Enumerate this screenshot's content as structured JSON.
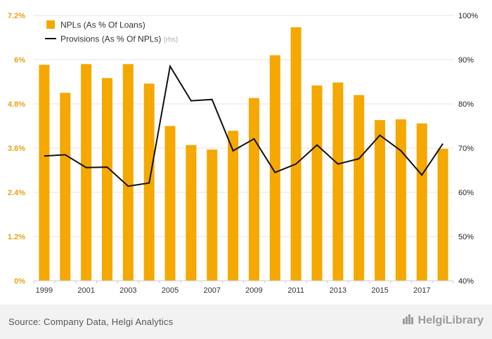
{
  "chart_data": {
    "type": "bar+line",
    "x": [
      "1999",
      "2000",
      "2001",
      "2002",
      "2003",
      "2004",
      "2005",
      "2006",
      "2007",
      "2008",
      "2009",
      "2010",
      "2011",
      "2012",
      "2013",
      "2014",
      "2015",
      "2016",
      "2017",
      "2018"
    ],
    "x_tick_labels": [
      "1999",
      "2001",
      "2003",
      "2005",
      "2007",
      "2009",
      "2011",
      "2013",
      "2015",
      "2017"
    ],
    "series": [
      {
        "name": "NPLs (As % Of Loans)",
        "type": "bar",
        "axis": "left",
        "color": "#f5a800",
        "values": [
          5.86,
          5.1,
          5.88,
          5.5,
          5.88,
          5.35,
          4.2,
          3.68,
          3.56,
          4.07,
          4.96,
          6.12,
          6.88,
          5.3,
          5.38,
          5.04,
          4.36,
          4.38,
          4.27,
          3.58
        ]
      },
      {
        "name": "Provisions (As % Of NPLs)",
        "name_suffix": "(rhs)",
        "type": "line",
        "axis": "right",
        "color": "#111111",
        "values": [
          68.2,
          68.5,
          65.6,
          65.7,
          61.4,
          62.1,
          88.5,
          80.7,
          81.0,
          69.4,
          72.1,
          64.5,
          66.4,
          70.7,
          66.4,
          67.6,
          72.9,
          69.4,
          63.9,
          71.0
        ]
      }
    ],
    "y_left": {
      "ticks": [
        "0%",
        "1.2%",
        "2.4%",
        "3.6%",
        "4.8%",
        "6%",
        "7.2%"
      ],
      "min": 0,
      "max": 7.2,
      "step": 1.2
    },
    "y_right": {
      "ticks": [
        "40%",
        "50%",
        "60%",
        "70%",
        "80%",
        "90%",
        "100%"
      ],
      "min": 40,
      "max": 100,
      "step": 10
    },
    "grid": true,
    "legend_position": "top-left",
    "colors": {
      "bar": "#f5a800",
      "line": "#111111",
      "grid": "#e6e6e6",
      "left_ticks": "#e8a317",
      "right_ticks": "#222222"
    }
  },
  "footer": {
    "source": "Source: Company Data, Helgi Analytics",
    "brand": "HelgiLibrary"
  }
}
